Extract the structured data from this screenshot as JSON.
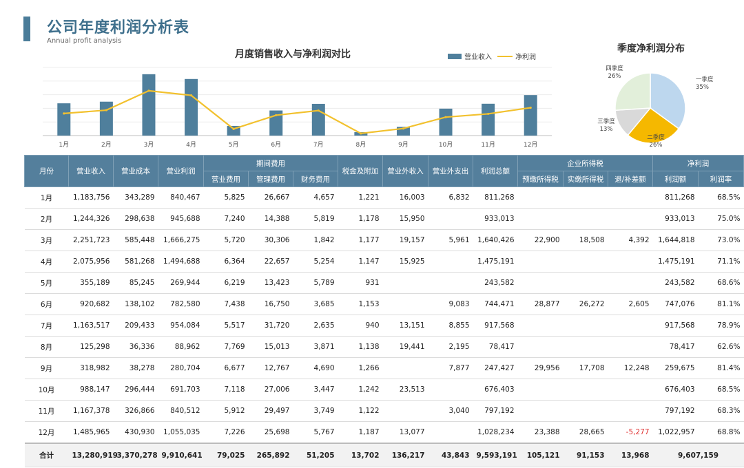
{
  "header": {
    "title": "公司年度利润分析表",
    "subtitle": "Annual profit analysis"
  },
  "bar_chart_title": "月度销售收入与净利润对比",
  "legend": {
    "bar": "营业收入",
    "line": "净利润"
  },
  "pie_title": "季度净利润分布",
  "colors": {
    "bar": "#4f7f9c",
    "line": "#f2c12e",
    "header": "#547f9c",
    "negative": "#e03030",
    "pie": [
      "#bdd7ee",
      "#f5b800",
      "#d9d9d9",
      "#e2efda"
    ]
  },
  "chart_data": [
    {
      "type": "bar",
      "title": "月度销售收入与净利润对比",
      "categories": [
        "1月",
        "2月",
        "3月",
        "4月",
        "5月",
        "6月",
        "7月",
        "8月",
        "9月",
        "10月",
        "11月",
        "12月"
      ],
      "series": [
        {
          "name": "营业收入",
          "type": "bar",
          "values": [
            1183756,
            1244326,
            2251723,
            2075956,
            355189,
            920682,
            1163517,
            125298,
            318982,
            988147,
            1167378,
            1485965
          ]
        },
        {
          "name": "净利润",
          "type": "line",
          "values": [
            811268,
            933013,
            1644818,
            1475191,
            243582,
            747076,
            917568,
            78417,
            259675,
            676403,
            797192,
            1022957
          ]
        }
      ],
      "ylim": [
        0,
        2500000
      ],
      "grid": true,
      "legend": "top-right"
    },
    {
      "type": "pie",
      "title": "季度净利润分布",
      "slices": [
        {
          "label": "一季度",
          "pct": "35%",
          "value": 35
        },
        {
          "label": "二季度",
          "pct": "26%",
          "value": 26
        },
        {
          "label": "三季度",
          "pct": "13%",
          "value": 13
        },
        {
          "label": "四季度",
          "pct": "26%",
          "value": 26
        }
      ]
    }
  ],
  "table": {
    "headers": {
      "month": "月份",
      "revenue": "营业收入",
      "cost": "营业成本",
      "op_profit": "营业利润",
      "period_expense": "期间费用",
      "sales_exp": "营业费用",
      "mgmt_exp": "管理费用",
      "fin_exp": "财务费用",
      "tax": "税金及附加",
      "non_op_income": "营业外收入",
      "non_op_exp": "营业外支出",
      "total_profit": "利润总额",
      "income_tax": "企业所得税",
      "prepaid_tax": "预缴所得税",
      "paid_tax": "实缴所得税",
      "refund_tax": "退/补差额",
      "net_profit": "净利润",
      "net_amount": "利润额",
      "net_rate": "利润率"
    },
    "rows": [
      [
        "1月",
        "1,183,756",
        "343,289",
        "840,467",
        "5,825",
        "26,667",
        "4,657",
        "1,221",
        "16,003",
        "6,832",
        "811,268",
        "",
        "",
        "",
        "811,268",
        "68.5%"
      ],
      [
        "2月",
        "1,244,326",
        "298,638",
        "945,688",
        "7,240",
        "14,388",
        "5,819",
        "1,178",
        "15,950",
        "",
        "933,013",
        "",
        "",
        "",
        "933,013",
        "75.0%"
      ],
      [
        "3月",
        "2,251,723",
        "585,448",
        "1,666,275",
        "5,720",
        "30,306",
        "1,842",
        "1,177",
        "19,157",
        "5,961",
        "1,640,426",
        "22,900",
        "18,508",
        "4,392",
        "1,644,818",
        "73.0%"
      ],
      [
        "4月",
        "2,075,956",
        "581,268",
        "1,494,688",
        "6,364",
        "22,657",
        "5,254",
        "1,147",
        "15,925",
        "",
        "1,475,191",
        "",
        "",
        "",
        "1,475,191",
        "71.1%"
      ],
      [
        "5月",
        "355,189",
        "85,245",
        "269,944",
        "6,219",
        "13,423",
        "5,789",
        "931",
        "",
        "",
        "243,582",
        "",
        "",
        "",
        "243,582",
        "68.6%"
      ],
      [
        "6月",
        "920,682",
        "138,102",
        "782,580",
        "7,438",
        "16,750",
        "3,685",
        "1,153",
        "",
        "9,083",
        "744,471",
        "28,877",
        "26,272",
        "2,605",
        "747,076",
        "81.1%"
      ],
      [
        "7月",
        "1,163,517",
        "209,433",
        "954,084",
        "5,517",
        "31,720",
        "2,635",
        "940",
        "13,151",
        "8,855",
        "917,568",
        "",
        "",
        "",
        "917,568",
        "78.9%"
      ],
      [
        "8月",
        "125,298",
        "36,336",
        "88,962",
        "7,769",
        "15,013",
        "3,871",
        "1,138",
        "19,441",
        "2,195",
        "78,417",
        "",
        "",
        "",
        "78,417",
        "62.6%"
      ],
      [
        "9月",
        "318,982",
        "38,278",
        "280,704",
        "6,677",
        "12,767",
        "4,690",
        "1,266",
        "",
        "7,877",
        "247,427",
        "29,956",
        "17,708",
        "12,248",
        "259,675",
        "81.4%"
      ],
      [
        "10月",
        "988,147",
        "296,444",
        "691,703",
        "7,118",
        "27,006",
        "3,447",
        "1,242",
        "23,513",
        "",
        "676,403",
        "",
        "",
        "",
        "676,403",
        "68.5%"
      ],
      [
        "11月",
        "1,167,378",
        "326,866",
        "840,512",
        "5,912",
        "29,497",
        "3,749",
        "1,122",
        "",
        "3,040",
        "797,192",
        "",
        "",
        "",
        "797,192",
        "68.3%"
      ],
      [
        "12月",
        "1,485,965",
        "430,930",
        "1,055,035",
        "7,226",
        "25,698",
        "5,767",
        "1,187",
        "13,077",
        "",
        "1,028,234",
        "23,388",
        "28,665",
        "-5,277",
        "1,022,957",
        "68.8%"
      ]
    ],
    "total": [
      "合计",
      "13,280,919",
      "3,370,278",
      "9,910,641",
      "79,025",
      "265,892",
      "51,205",
      "13,702",
      "136,217",
      "43,843",
      "9,593,191",
      "105,121",
      "91,153",
      "13,968",
      "9,607,159",
      ""
    ]
  }
}
